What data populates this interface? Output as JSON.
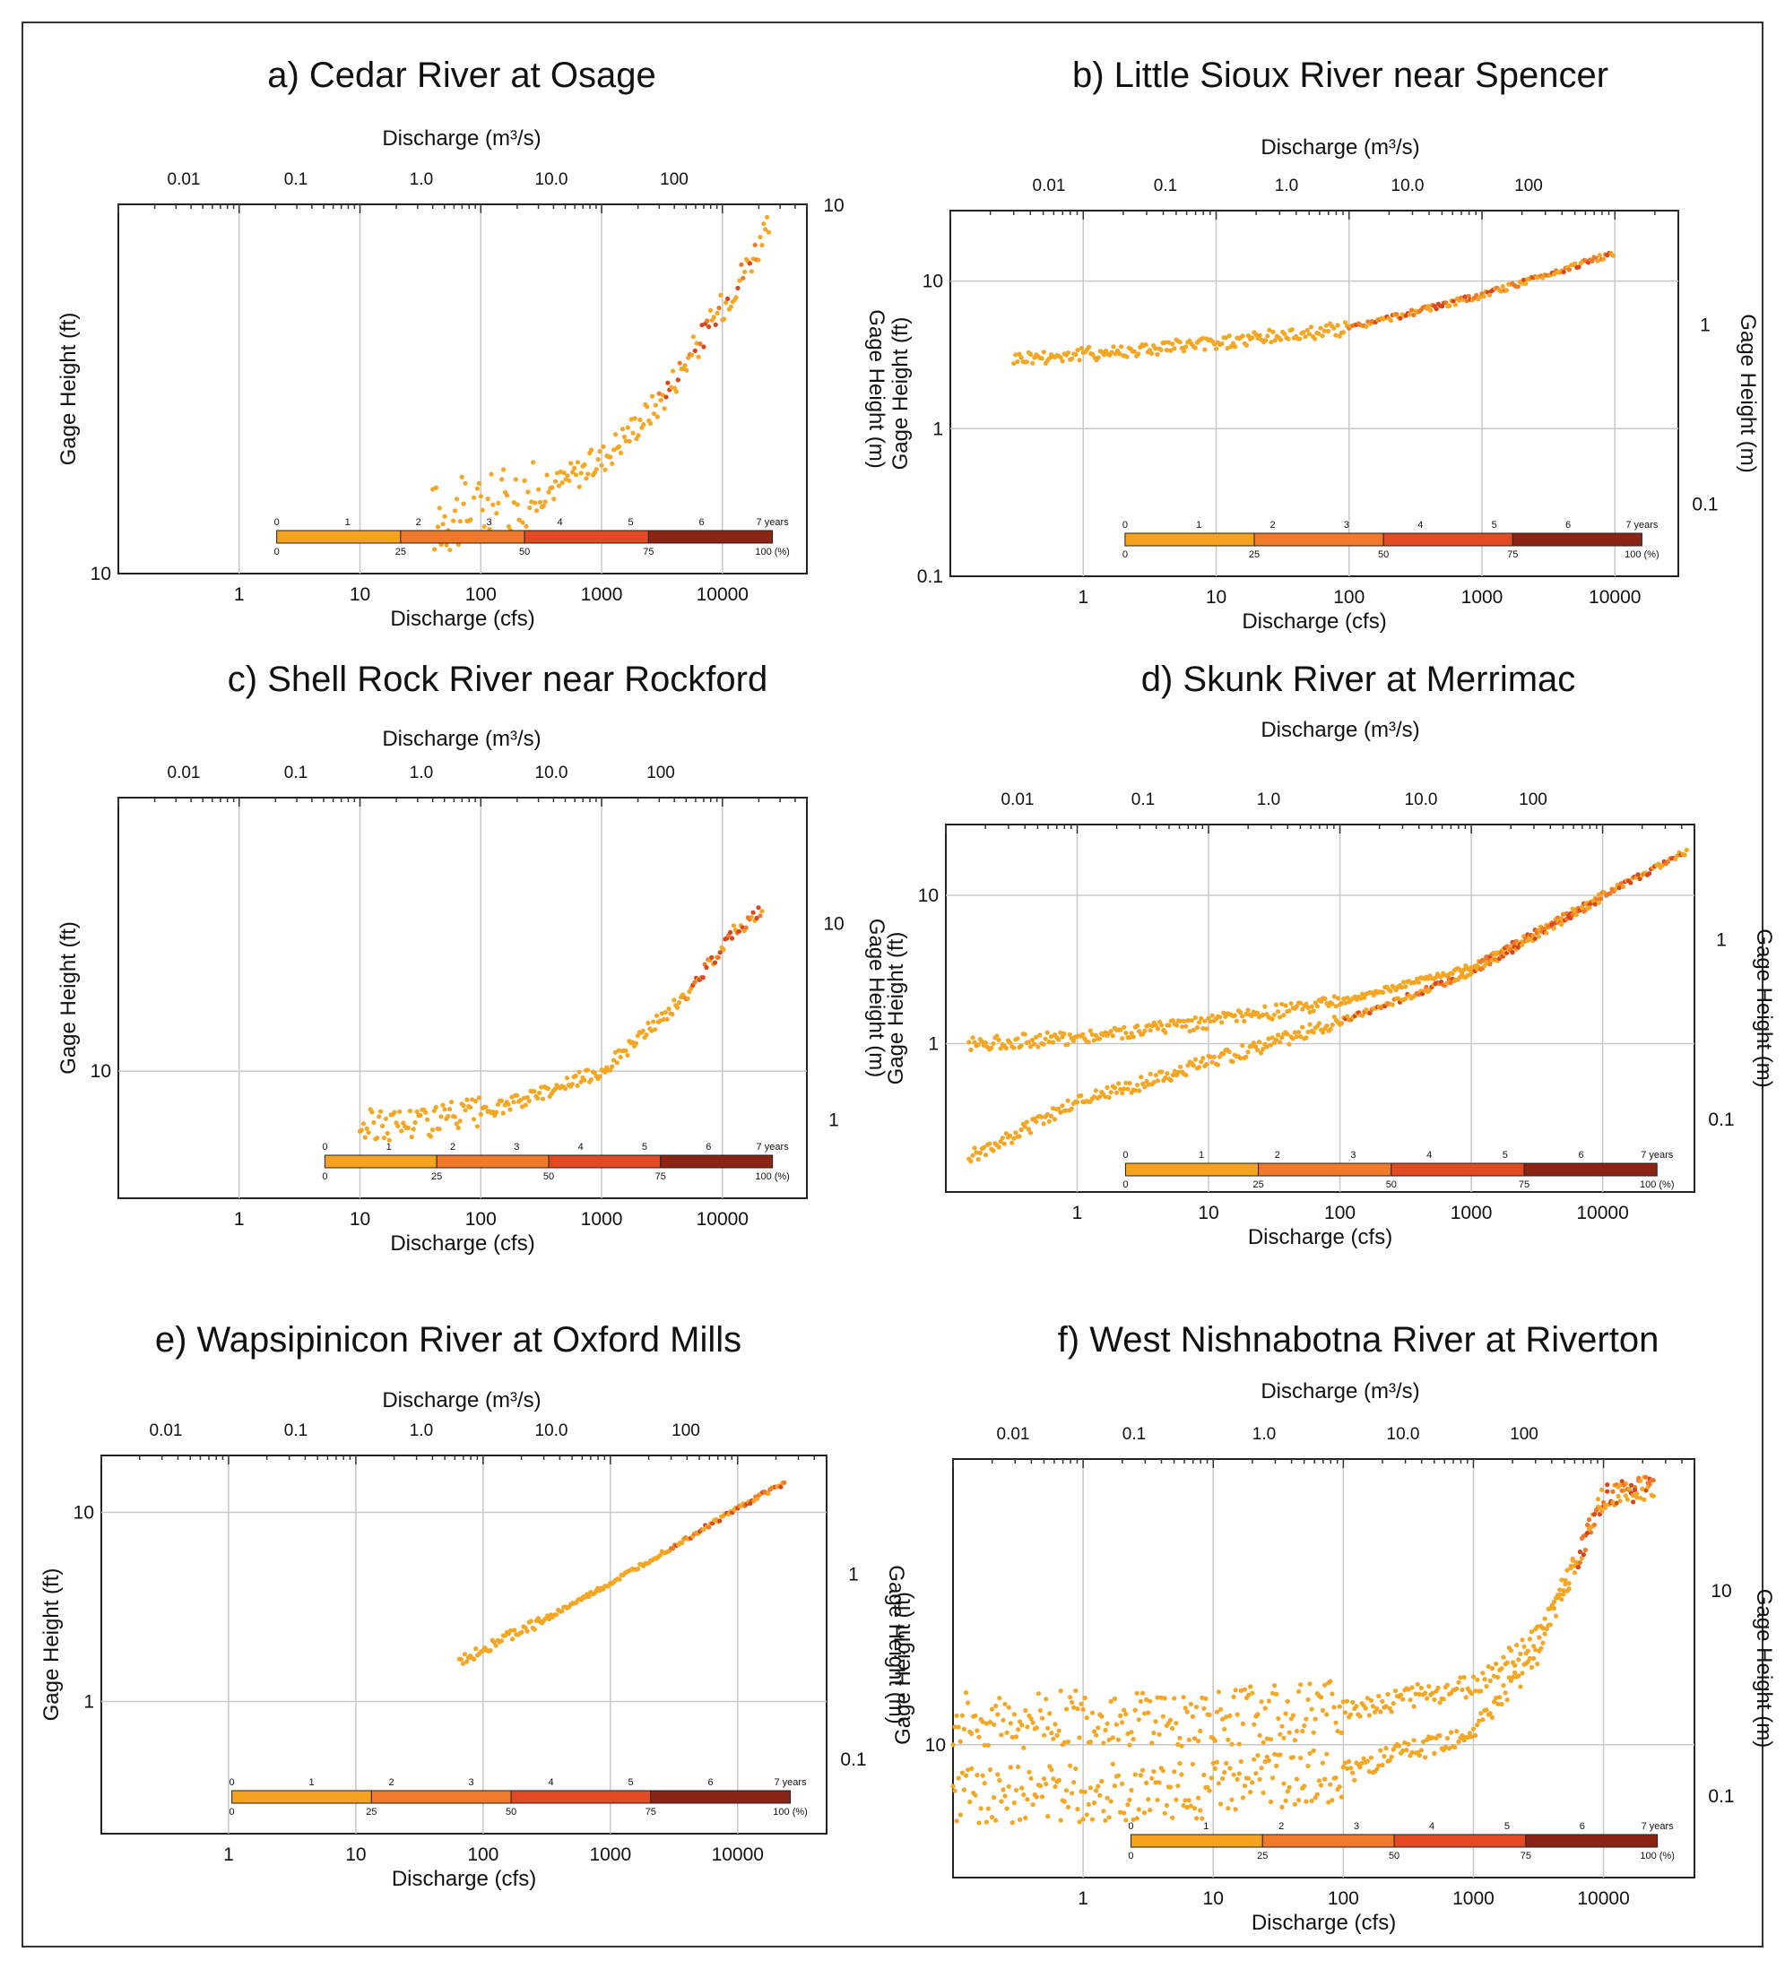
{
  "colors": {
    "scatter": "#f5a623",
    "scatter_mid": "#f07a2a",
    "scatter_late": "#d9461e",
    "colorbar": [
      "#f5a21f",
      "#f07a2a",
      "#e24a24",
      "#8b2415"
    ],
    "grid": "#c8c8c8",
    "frame": "#222222"
  },
  "chart_data": [
    {
      "id": "a",
      "type": "scatter",
      "title": "a) Cedar River at Osage",
      "xlabel": "Discharge (cfs)",
      "x2label": "Discharge (m³/s)",
      "ylabel": "Gage Height (ft)",
      "y2label": "Gage Height (m)",
      "xlog": true,
      "ylog": true,
      "xlim": [
        0.1,
        50000
      ],
      "ylim": [
        10,
        20
      ],
      "xticks": [
        "1",
        "10",
        "100",
        "1000",
        "10000"
      ],
      "x2ticks": [
        "0.01",
        "0.1",
        "1.0",
        "10.0",
        "100"
      ],
      "yticks": [
        "10"
      ],
      "y2ticks": [
        "10"
      ],
      "colorbar_top": [
        "0",
        "1",
        "2",
        "3",
        "4",
        "5",
        "6",
        "7 years"
      ],
      "colorbar_bottom": [
        "0",
        "25",
        "50",
        "75",
        "100 (%)"
      ],
      "series": [
        {
          "name": "",
          "x": [
            40,
            100,
            300,
            1000,
            3000,
            10000,
            25000
          ],
          "y": [
            11.1,
            11.25,
            11.6,
            12.4,
            13.8,
            16.5,
            19.2
          ]
        }
      ]
    },
    {
      "id": "b",
      "type": "scatter",
      "title": "b) Little Sioux River near Spencer",
      "xlabel": "Discharge (cfs)",
      "x2label": "Discharge (m³/s)",
      "ylabel": "Gage Height (ft)",
      "y2label": "Gage Height (m)",
      "xlog": true,
      "ylog": true,
      "xlim": [
        0.1,
        30000
      ],
      "ylim": [
        0.1,
        30
      ],
      "xticks": [
        "1",
        "10",
        "100",
        "1000",
        "10000"
      ],
      "x2ticks": [
        "0.01",
        "0.1",
        "1.0",
        "10.0",
        "100"
      ],
      "yticks": [
        "0.1",
        "1",
        "10"
      ],
      "y2ticks": [
        "0.1",
        "1"
      ],
      "colorbar_top": [
        "0",
        "1",
        "2",
        "3",
        "4",
        "5",
        "6",
        "7 years"
      ],
      "colorbar_bottom": [
        "0",
        "25",
        "50",
        "75",
        "100 (%)"
      ],
      "series": [
        {
          "name": "",
          "x": [
            0.3,
            1,
            10,
            100,
            1000,
            10000
          ],
          "y": [
            3.0,
            3.2,
            3.8,
            4.8,
            8.0,
            15.5
          ]
        }
      ]
    },
    {
      "id": "c",
      "type": "scatter",
      "title": "c) Shell Rock River near Rockford",
      "xlabel": "Discharge (cfs)",
      "x2label": "Discharge (m³/s)",
      "ylabel": "Gage Height (ft)",
      "y2label": "Gage Height (m)",
      "xlog": true,
      "ylog": true,
      "xlim": [
        0.1,
        50000
      ],
      "ylim": [
        6,
        30
      ],
      "xticks": [
        "1",
        "10",
        "100",
        "1000",
        "10000"
      ],
      "x2ticks": [
        "0.01",
        "0.1",
        "1.0",
        "10.0",
        "100"
      ],
      "yticks": [
        "10"
      ],
      "y2ticks": [
        "1",
        "10"
      ],
      "colorbar_top": [
        "0",
        "1",
        "2",
        "3",
        "4",
        "5",
        "6",
        "7 years"
      ],
      "colorbar_bottom": [
        "0",
        "25",
        "50",
        "75",
        "100 (%)"
      ],
      "series": [
        {
          "name": "",
          "x": [
            10,
            100,
            1000,
            5000,
            12000,
            22000
          ],
          "y": [
            8.0,
            8.4,
            10.0,
            13.5,
            17.5,
            19.0
          ]
        }
      ]
    },
    {
      "id": "d",
      "type": "scatter",
      "title": "d) Skunk River at Merrimac",
      "xlabel": "Discharge (cfs)",
      "x2label": "Discharge (m³/s)",
      "ylabel": "Gage Height (ft)",
      "y2label": "Gage Height (m)",
      "xlog": true,
      "ylog": true,
      "xlim": [
        0.1,
        50000
      ],
      "ylim": [
        0.1,
        30
      ],
      "xticks": [
        "1",
        "10",
        "100",
        "1000",
        "10000"
      ],
      "x2ticks": [
        "0.01",
        "0.1",
        "1.0",
        "10.0",
        "100"
      ],
      "yticks": [
        "1",
        "10"
      ],
      "y2ticks": [
        "0.1",
        "1"
      ],
      "colorbar_top": [
        "0",
        "1",
        "2",
        "3",
        "4",
        "5",
        "6",
        "7 years"
      ],
      "colorbar_bottom": [
        "0",
        "25",
        "50",
        "75",
        "100 (%)"
      ],
      "series": [
        {
          "name": "",
          "x": [
            0.15,
            1,
            10,
            100,
            1000,
            10000,
            45000
          ],
          "y": [
            1.0,
            1.1,
            1.4,
            1.9,
            3.3,
            10.0,
            20.0
          ]
        },
        {
          "name": "",
          "x": [
            0.15,
            1,
            10,
            100,
            1000,
            10000
          ],
          "y": [
            0.17,
            0.4,
            0.75,
            1.4,
            3.0,
            9.5
          ]
        }
      ]
    },
    {
      "id": "e",
      "type": "scatter",
      "title": "e) Wapsipinicon River at Oxford Mills",
      "xlabel": "Discharge (cfs)",
      "x2label": "Discharge (m³/s)",
      "ylabel": "Gage Height (ft)",
      "y2label": "Gage Height (m)",
      "xlog": true,
      "ylog": true,
      "xlim": [
        0.1,
        50000
      ],
      "ylim": [
        0.2,
        20
      ],
      "xticks": [
        "1",
        "10",
        "100",
        "1000",
        "10000"
      ],
      "x2ticks": [
        "0.01",
        "0.1",
        "1.0",
        "10.0",
        "100"
      ],
      "yticks": [
        "1",
        "10"
      ],
      "y2ticks": [
        "0.1",
        "1"
      ],
      "colorbar_top": [
        "0",
        "1",
        "2",
        "3",
        "4",
        "5",
        "6",
        "7 years"
      ],
      "colorbar_bottom": [
        "0",
        "25",
        "50",
        "75",
        "100 (%)"
      ],
      "series": [
        {
          "name": "",
          "x": [
            65,
            100,
            300,
            1000,
            3000,
            10000,
            24000
          ],
          "y": [
            1.6,
            1.9,
            2.7,
            4.2,
            6.5,
            10.5,
            14.5
          ]
        }
      ]
    },
    {
      "id": "f",
      "type": "scatter",
      "title": "f) West Nishnabotna River at Riverton",
      "xlabel": "Discharge (cfs)",
      "x2label": "Discharge (m³/s)",
      "ylabel": "Gage Height (ft)",
      "y2label": "Gage Height (m)",
      "xlog": true,
      "ylog": true,
      "xlim": [
        0.1,
        50000
      ],
      "ylim": [
        6,
        30
      ],
      "xticks": [
        "1",
        "10",
        "100",
        "1000",
        "10000"
      ],
      "x2ticks": [
        "0.01",
        "0.1",
        "1.0",
        "10.0",
        "100"
      ],
      "yticks": [
        "10"
      ],
      "y2ticks": [
        "0.1",
        "10"
      ],
      "colorbar_top": [
        "0",
        "1",
        "2",
        "3",
        "4",
        "5",
        "6",
        "7 years"
      ],
      "colorbar_bottom": [
        "0",
        "25",
        "50",
        "75",
        "100 (%)"
      ],
      "series": [
        {
          "name": "",
          "x": [
            0.1,
            10,
            100,
            1000,
            3000,
            6000,
            10000,
            25000
          ],
          "y": [
            11.0,
            11.1,
            11.5,
            12.5,
            15.0,
            20.0,
            26.0,
            27.0
          ]
        },
        {
          "name": "",
          "x": [
            0.1,
            10,
            100,
            1000,
            3000,
            6000,
            10000,
            25000
          ],
          "y": [
            8.2,
            8.4,
            9.0,
            10.5,
            14.0,
            20.0,
            26.0,
            27.0
          ]
        }
      ]
    }
  ]
}
